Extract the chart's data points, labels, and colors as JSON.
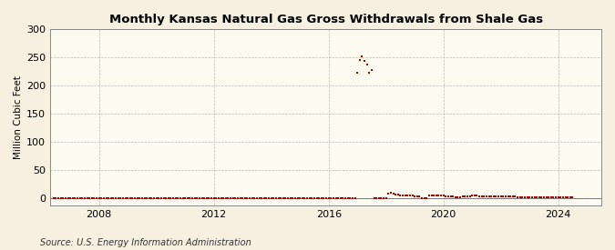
{
  "title": "Monthly Kansas Natural Gas Gross Withdrawals from Shale Gas",
  "ylabel": "Million Cubic Feet",
  "source": "Source: U.S. Energy Information Administration",
  "background_color": "#f5f0e0",
  "plot_background_color": "#fdfaf0",
  "marker_color": "#aa0000",
  "xlim_left": 2006.3,
  "xlim_right": 2025.5,
  "ylim_bottom": -12,
  "ylim_top": 300,
  "yticks": [
    0,
    50,
    100,
    150,
    200,
    250,
    300
  ],
  "xticks": [
    2008,
    2012,
    2016,
    2020,
    2024
  ],
  "data_x": [
    2006.417,
    2006.5,
    2006.583,
    2006.667,
    2006.75,
    2006.833,
    2006.917,
    2007.0,
    2007.083,
    2007.167,
    2007.25,
    2007.333,
    2007.417,
    2007.5,
    2007.583,
    2007.667,
    2007.75,
    2007.833,
    2007.917,
    2008.0,
    2008.083,
    2008.167,
    2008.25,
    2008.333,
    2008.417,
    2008.5,
    2008.583,
    2008.667,
    2008.75,
    2008.833,
    2008.917,
    2009.0,
    2009.083,
    2009.167,
    2009.25,
    2009.333,
    2009.417,
    2009.5,
    2009.583,
    2009.667,
    2009.75,
    2009.833,
    2009.917,
    2010.0,
    2010.083,
    2010.167,
    2010.25,
    2010.333,
    2010.417,
    2010.5,
    2010.583,
    2010.667,
    2010.75,
    2010.833,
    2010.917,
    2011.0,
    2011.083,
    2011.167,
    2011.25,
    2011.333,
    2011.417,
    2011.5,
    2011.583,
    2011.667,
    2011.75,
    2011.833,
    2011.917,
    2012.0,
    2012.083,
    2012.167,
    2012.25,
    2012.333,
    2012.417,
    2012.5,
    2012.583,
    2012.667,
    2012.75,
    2012.833,
    2012.917,
    2013.0,
    2013.083,
    2013.167,
    2013.25,
    2013.333,
    2013.417,
    2013.5,
    2013.583,
    2013.667,
    2013.75,
    2013.833,
    2013.917,
    2014.0,
    2014.083,
    2014.167,
    2014.25,
    2014.333,
    2014.417,
    2014.5,
    2014.583,
    2014.667,
    2014.75,
    2014.833,
    2014.917,
    2015.0,
    2015.083,
    2015.167,
    2015.25,
    2015.333,
    2015.417,
    2015.5,
    2015.583,
    2015.667,
    2015.75,
    2015.833,
    2015.917,
    2016.0,
    2016.083,
    2016.167,
    2016.25,
    2016.333,
    2016.417,
    2016.5,
    2016.583,
    2016.667,
    2016.75,
    2016.833,
    2016.917,
    2017.0,
    2017.083,
    2017.167,
    2017.25,
    2017.333,
    2017.417,
    2017.5,
    2017.583,
    2017.667,
    2017.75,
    2017.833,
    2017.917,
    2018.0,
    2018.083,
    2018.167,
    2018.25,
    2018.333,
    2018.417,
    2018.5,
    2018.583,
    2018.667,
    2018.75,
    2018.833,
    2018.917,
    2019.0,
    2019.083,
    2019.167,
    2019.25,
    2019.333,
    2019.417,
    2019.5,
    2019.583,
    2019.667,
    2019.75,
    2019.833,
    2019.917,
    2020.0,
    2020.083,
    2020.167,
    2020.25,
    2020.333,
    2020.417,
    2020.5,
    2020.583,
    2020.667,
    2020.75,
    2020.833,
    2020.917,
    2021.0,
    2021.083,
    2021.167,
    2021.25,
    2021.333,
    2021.417,
    2021.5,
    2021.583,
    2021.667,
    2021.75,
    2021.833,
    2021.917,
    2022.0,
    2022.083,
    2022.167,
    2022.25,
    2022.333,
    2022.417,
    2022.5,
    2022.583,
    2022.667,
    2022.75,
    2022.833,
    2022.917,
    2023.0,
    2023.083,
    2023.167,
    2023.25,
    2023.333,
    2023.417,
    2023.5,
    2023.583,
    2023.667,
    2023.75,
    2023.833,
    2023.917,
    2024.0,
    2024.083,
    2024.167,
    2024.25,
    2024.333,
    2024.417,
    2024.5
  ],
  "data_y": [
    0,
    0,
    0,
    0,
    0,
    0,
    0,
    0,
    0,
    0,
    0,
    0,
    0,
    0,
    0,
    0,
    0,
    0,
    0,
    0,
    0,
    0,
    0,
    0,
    0,
    0,
    0,
    0,
    0,
    0,
    0,
    0,
    0,
    0,
    0,
    0,
    0,
    0,
    0,
    0,
    0,
    0,
    0,
    0,
    0,
    0,
    0,
    0,
    0,
    0,
    0,
    0,
    0,
    0,
    0,
    0,
    0,
    0,
    0,
    0,
    0,
    0,
    0,
    0,
    0,
    0,
    0,
    0,
    0,
    0,
    0,
    0,
    0,
    0,
    0,
    0,
    0,
    0,
    0,
    0,
    0,
    0,
    0,
    0,
    0,
    0,
    0,
    0,
    0,
    0,
    0,
    0,
    0,
    0,
    0,
    0,
    0,
    0,
    0,
    0,
    0,
    0,
    0,
    0,
    0,
    0,
    0,
    0,
    0,
    0,
    0,
    0,
    0,
    0,
    0,
    0,
    0,
    0,
    0,
    0,
    0,
    0,
    0,
    0,
    0,
    0,
    0,
    222,
    246,
    252,
    244,
    237,
    222,
    227,
    0,
    0,
    0,
    0,
    0,
    0,
    8,
    10,
    8,
    7,
    7,
    6,
    5,
    5,
    5,
    5,
    5,
    4,
    4,
    4,
    0,
    0,
    0,
    5,
    5,
    5,
    5,
    5,
    5,
    5,
    4,
    4,
    4,
    4,
    3,
    3,
    3,
    4,
    4,
    4,
    4,
    5,
    5,
    5,
    4,
    4,
    4,
    4,
    4,
    4,
    4,
    4,
    4,
    4,
    4,
    4,
    4,
    4,
    4,
    4,
    3,
    3,
    3,
    3,
    3,
    3,
    3,
    3,
    3,
    3,
    3,
    3,
    3,
    3,
    3,
    3,
    3,
    3,
    3,
    3,
    3,
    2,
    2,
    2
  ]
}
